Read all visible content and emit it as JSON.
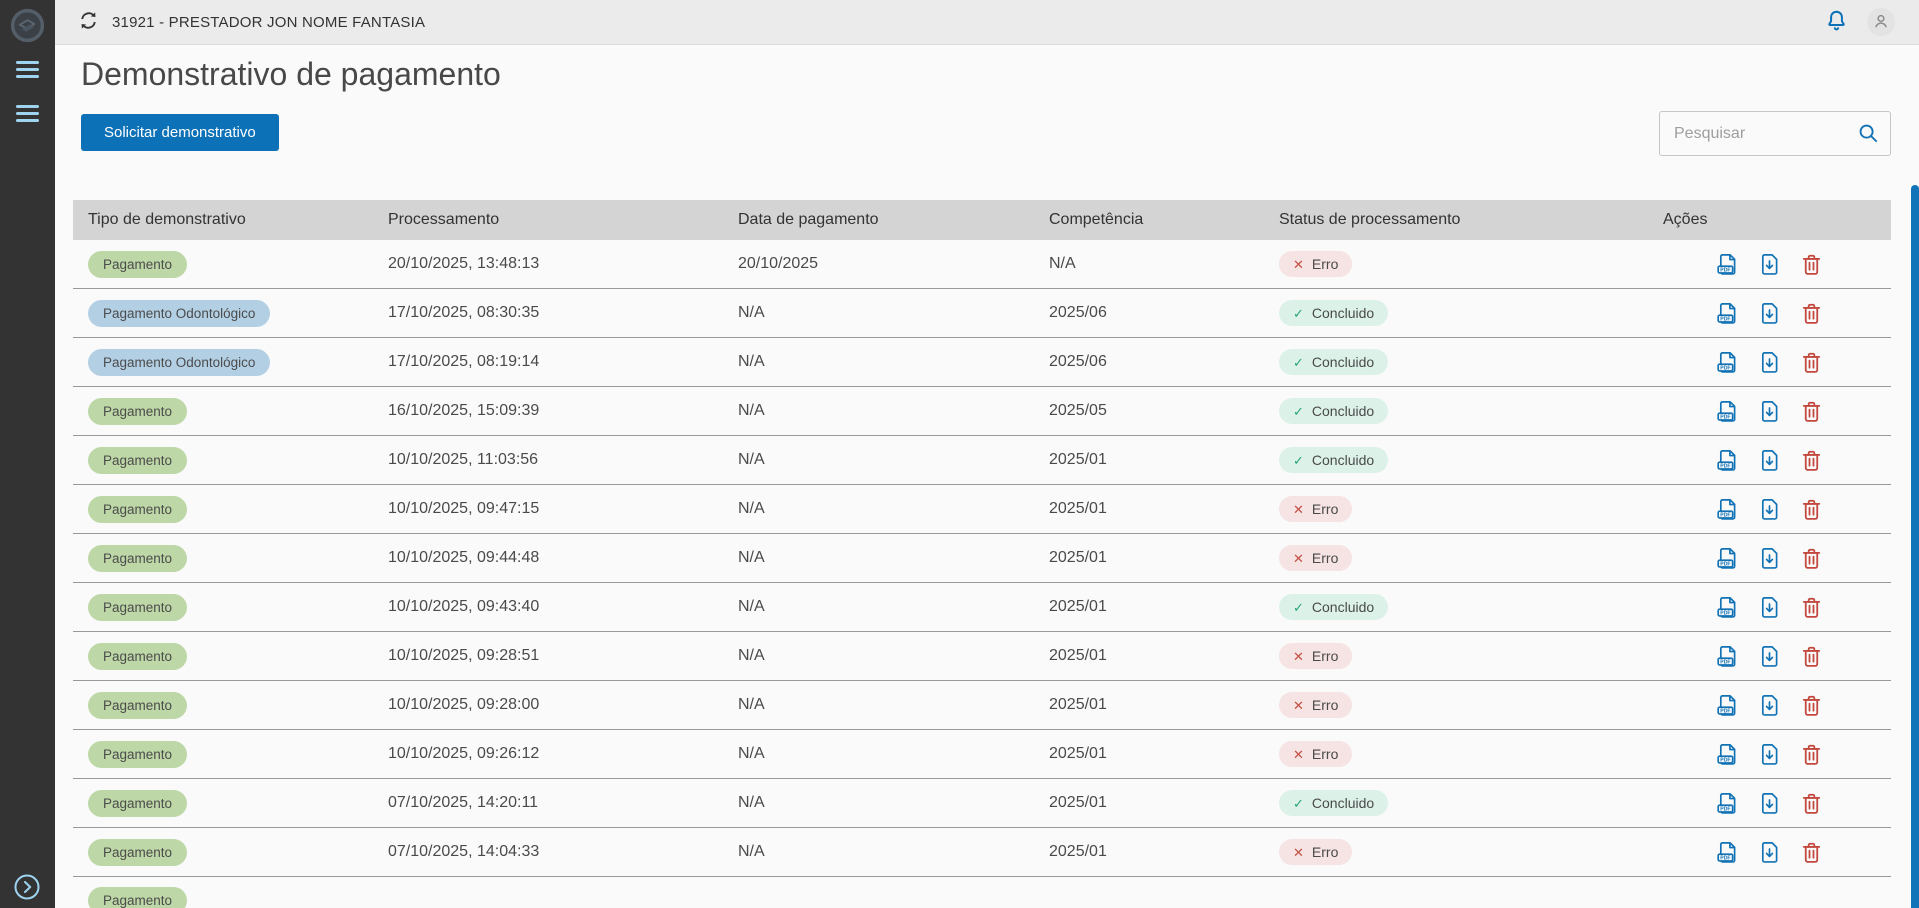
{
  "topbar": {
    "title": "31921 - PRESTADOR JON NOME FANTASIA",
    "refresh_icon": "refresh-icon",
    "notifications_icon": "bell-icon",
    "user_icon": "user-avatar-icon"
  },
  "sidebar": {
    "logo_icon": "totvs-logo-icon",
    "menu_toggle_icon": "hamburger-icon",
    "secondary_menu_icon": "hamburger-icon",
    "expand_icon": "chevron-right-circle-icon"
  },
  "page": {
    "title": "Demonstrativo de pagamento"
  },
  "toolbar": {
    "request_button_label": "Solicitar demonstrativo",
    "search_placeholder": "Pesquisar",
    "search_icon": "search-icon"
  },
  "colors": {
    "accent": "#1172b5",
    "button": "#0c71b7",
    "sidebar-bg": "#333333",
    "topbar-bg": "#ebebeb",
    "content-bg": "#fafafa",
    "table-header-bg": "#d4d4d4",
    "row-divider": "#999999",
    "badge-payment-bg": "#bdd7a6",
    "badge-dental-bg": "#b3cfe4",
    "status-error-bg": "#f6e3e3",
    "status-error-icon": "#c24f44",
    "status-success-bg": "#dcf2e9",
    "status-success-icon": "#27a27a",
    "trash": "#c2473d",
    "scrollbar": "#1173b8"
  },
  "table": {
    "columns": [
      "Tipo de demonstrativo",
      "Processamento",
      "Data de pagamento",
      "Competência",
      "Status de processamento",
      "Ações"
    ],
    "action_icons": [
      "pdf-file-icon",
      "download-file-icon",
      "trash-icon"
    ],
    "rows": [
      {
        "type": "Pagamento",
        "variant": "payment",
        "processing": "20/10/2025, 13:48:13",
        "payment_date": "20/10/2025",
        "competence": "N/A",
        "status": "Erro",
        "status_variant": "error",
        "status_icon": "x-icon"
      },
      {
        "type": "Pagamento Odontológico",
        "variant": "dental",
        "processing": "17/10/2025, 08:30:35",
        "payment_date": "N/A",
        "competence": "2025/06",
        "status": "Concluido",
        "status_variant": "success",
        "status_icon": "check-icon"
      },
      {
        "type": "Pagamento Odontológico",
        "variant": "dental",
        "processing": "17/10/2025, 08:19:14",
        "payment_date": "N/A",
        "competence": "2025/06",
        "status": "Concluido",
        "status_variant": "success",
        "status_icon": "check-icon"
      },
      {
        "type": "Pagamento",
        "variant": "payment",
        "processing": "16/10/2025, 15:09:39",
        "payment_date": "N/A",
        "competence": "2025/05",
        "status": "Concluido",
        "status_variant": "success",
        "status_icon": "check-icon"
      },
      {
        "type": "Pagamento",
        "variant": "payment",
        "processing": "10/10/2025, 11:03:56",
        "payment_date": "N/A",
        "competence": "2025/01",
        "status": "Concluido",
        "status_variant": "success",
        "status_icon": "check-icon"
      },
      {
        "type": "Pagamento",
        "variant": "payment",
        "processing": "10/10/2025, 09:47:15",
        "payment_date": "N/A",
        "competence": "2025/01",
        "status": "Erro",
        "status_variant": "error",
        "status_icon": "x-icon"
      },
      {
        "type": "Pagamento",
        "variant": "payment",
        "processing": "10/10/2025, 09:44:48",
        "payment_date": "N/A",
        "competence": "2025/01",
        "status": "Erro",
        "status_variant": "error",
        "status_icon": "x-icon"
      },
      {
        "type": "Pagamento",
        "variant": "payment",
        "processing": "10/10/2025, 09:43:40",
        "payment_date": "N/A",
        "competence": "2025/01",
        "status": "Concluido",
        "status_variant": "success",
        "status_icon": "check-icon"
      },
      {
        "type": "Pagamento",
        "variant": "payment",
        "processing": "10/10/2025, 09:28:51",
        "payment_date": "N/A",
        "competence": "2025/01",
        "status": "Erro",
        "status_variant": "error",
        "status_icon": "x-icon"
      },
      {
        "type": "Pagamento",
        "variant": "payment",
        "processing": "10/10/2025, 09:28:00",
        "payment_date": "N/A",
        "competence": "2025/01",
        "status": "Erro",
        "status_variant": "error",
        "status_icon": "x-icon"
      },
      {
        "type": "Pagamento",
        "variant": "payment",
        "processing": "10/10/2025, 09:26:12",
        "payment_date": "N/A",
        "competence": "2025/01",
        "status": "Erro",
        "status_variant": "error",
        "status_icon": "x-icon"
      },
      {
        "type": "Pagamento",
        "variant": "payment",
        "processing": "07/10/2025, 14:20:11",
        "payment_date": "N/A",
        "competence": "2025/01",
        "status": "Concluido",
        "status_variant": "success",
        "status_icon": "check-icon"
      },
      {
        "type": "Pagamento",
        "variant": "payment",
        "processing": "07/10/2025, 14:04:33",
        "payment_date": "N/A",
        "competence": "2025/01",
        "status": "Erro",
        "status_variant": "error",
        "status_icon": "x-icon"
      }
    ],
    "partial_row": {
      "type": "Pagamento",
      "variant": "payment"
    }
  }
}
